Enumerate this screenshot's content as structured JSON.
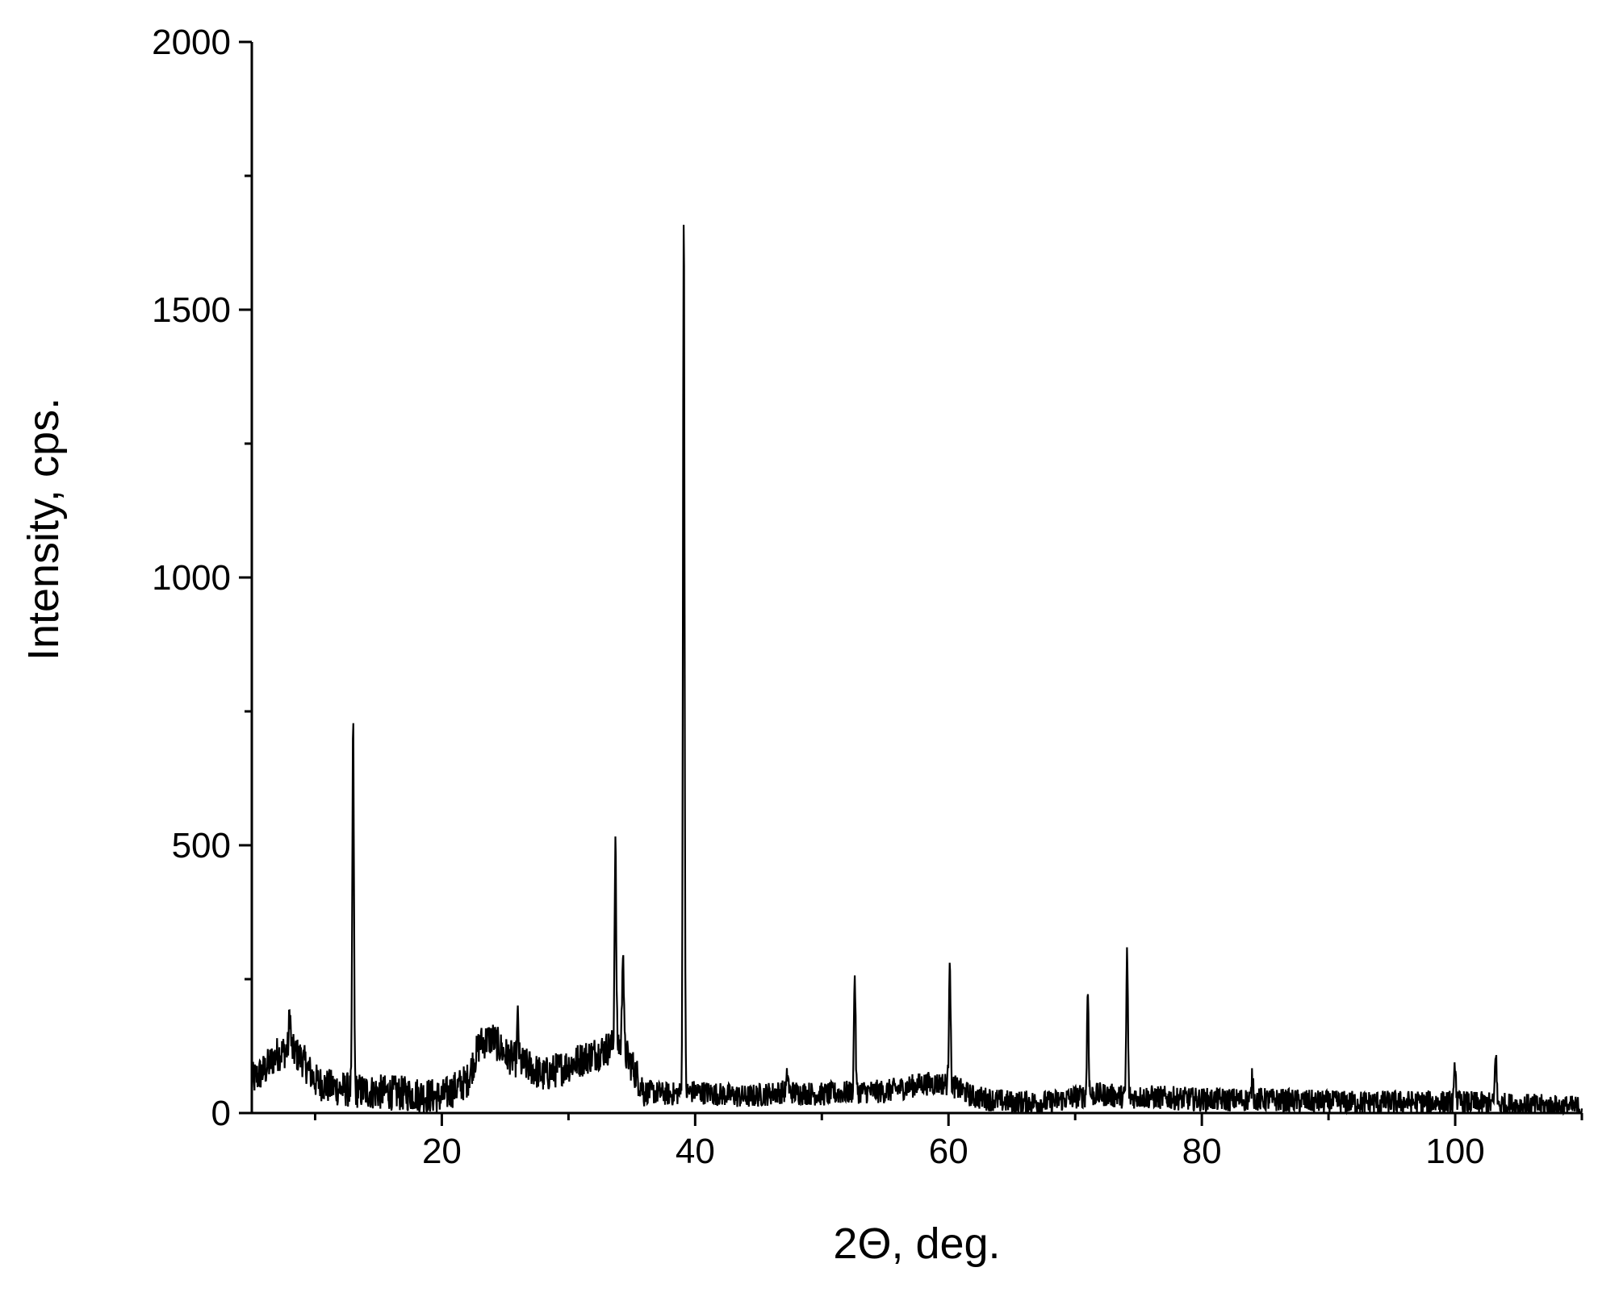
{
  "chart_data": {
    "type": "line",
    "title": "",
    "xlabel": "2Θ, deg.",
    "ylabel": "Intensity, cps.",
    "xlim": [
      5,
      110
    ],
    "ylim": [
      0,
      2000
    ],
    "x_ticks": [
      20,
      40,
      60,
      80,
      100
    ],
    "y_ticks": [
      0,
      500,
      1000,
      1500,
      2000
    ],
    "x_tick_labels": [
      "20",
      "40",
      "60",
      "80",
      "100"
    ],
    "y_tick_labels": [
      "0",
      "500",
      "1000",
      "1500",
      "2000"
    ],
    "grid": false,
    "legend": "none",
    "line_color": "#000000",
    "series": [
      {
        "baseline": [
          [
            5,
            60
          ],
          [
            6,
            80
          ],
          [
            7,
            110
          ],
          [
            8,
            120
          ],
          [
            9,
            100
          ],
          [
            10,
            60
          ],
          [
            11,
            50
          ],
          [
            12,
            45
          ],
          [
            14,
            40
          ],
          [
            16,
            38
          ],
          [
            18,
            35
          ],
          [
            20,
            30
          ],
          [
            22,
            60
          ],
          [
            23,
            130
          ],
          [
            24,
            140
          ],
          [
            25,
            110
          ],
          [
            26,
            95
          ],
          [
            27,
            85
          ],
          [
            28,
            70
          ],
          [
            29,
            80
          ],
          [
            30,
            90
          ],
          [
            31,
            100
          ],
          [
            32,
            110
          ],
          [
            33,
            120
          ],
          [
            34,
            130
          ],
          [
            35,
            90
          ],
          [
            36,
            40
          ],
          [
            38,
            35
          ],
          [
            40,
            40
          ],
          [
            44,
            30
          ],
          [
            47,
            40
          ],
          [
            50,
            35
          ],
          [
            53,
            40
          ],
          [
            55,
            40
          ],
          [
            58,
            55
          ],
          [
            60,
            55
          ],
          [
            62,
            30
          ],
          [
            65,
            20
          ],
          [
            68,
            20
          ],
          [
            70,
            30
          ],
          [
            72,
            35
          ],
          [
            74,
            30
          ],
          [
            76,
            30
          ],
          [
            80,
            25
          ],
          [
            85,
            25
          ],
          [
            90,
            20
          ],
          [
            95,
            20
          ],
          [
            100,
            20
          ],
          [
            105,
            15
          ],
          [
            110,
            10
          ]
        ],
        "noise_amplitude": 28,
        "peaks": [
          {
            "x": 8.0,
            "height": 190
          },
          {
            "x": 13.0,
            "height": 720
          },
          {
            "x": 26.0,
            "height": 175
          },
          {
            "x": 33.7,
            "height": 505
          },
          {
            "x": 34.3,
            "height": 320
          },
          {
            "x": 39.1,
            "height": 1700
          },
          {
            "x": 47.3,
            "height": 75
          },
          {
            "x": 52.6,
            "height": 260
          },
          {
            "x": 60.1,
            "height": 300
          },
          {
            "x": 71.0,
            "height": 230
          },
          {
            "x": 74.1,
            "height": 300
          },
          {
            "x": 84.0,
            "height": 70
          },
          {
            "x": 100.0,
            "height": 95
          },
          {
            "x": 103.2,
            "height": 120
          }
        ]
      }
    ]
  }
}
